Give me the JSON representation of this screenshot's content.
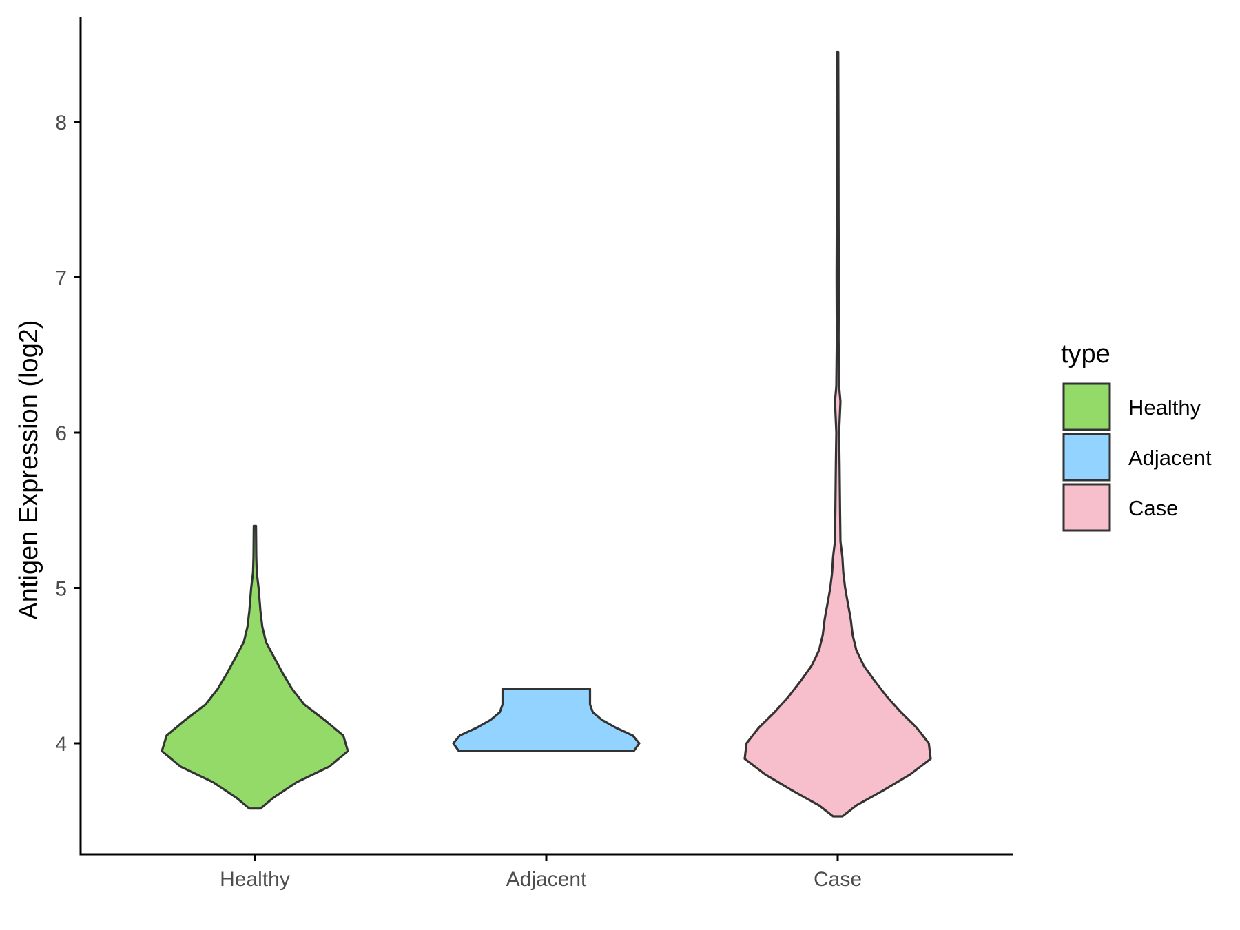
{
  "chart_data": {
    "type": "violin",
    "xlabel": "",
    "ylabel": "Antigen Expression (log2)",
    "ylim": [
      3.3,
      8.7
    ],
    "yticks": [
      4,
      5,
      6,
      7,
      8
    ],
    "categories": [
      "Healthy",
      "Adjacent",
      "Case"
    ],
    "grid": false,
    "legend": {
      "title": "type",
      "placement": "right",
      "entries": [
        {
          "label": "Healthy",
          "color": "#93DA69"
        },
        {
          "label": "Adjacent",
          "color": "#93D3FF"
        },
        {
          "label": "Case",
          "color": "#F7BFCB"
        }
      ]
    },
    "series": [
      {
        "name": "Healthy",
        "color": "#93DA69",
        "density": [
          [
            3.58,
            0.06
          ],
          [
            3.65,
            0.2
          ],
          [
            3.75,
            0.45
          ],
          [
            3.85,
            0.8
          ],
          [
            3.95,
            1.0
          ],
          [
            4.05,
            0.95
          ],
          [
            4.15,
            0.75
          ],
          [
            4.25,
            0.53
          ],
          [
            4.35,
            0.4
          ],
          [
            4.45,
            0.3
          ],
          [
            4.55,
            0.21
          ],
          [
            4.65,
            0.12
          ],
          [
            4.75,
            0.08
          ],
          [
            4.85,
            0.06
          ],
          [
            5.0,
            0.04
          ],
          [
            5.1,
            0.02
          ],
          [
            5.2,
            0.015
          ],
          [
            5.4,
            0.012
          ]
        ]
      },
      {
        "name": "Adjacent",
        "color": "#93D3FF",
        "density": [
          [
            3.95,
            0.94
          ],
          [
            4.0,
            1.0
          ],
          [
            4.05,
            0.93
          ],
          [
            4.1,
            0.75
          ],
          [
            4.15,
            0.6
          ],
          [
            4.2,
            0.5
          ],
          [
            4.25,
            0.47
          ],
          [
            4.3,
            0.47
          ],
          [
            4.35,
            0.47
          ]
        ]
      },
      {
        "name": "Case",
        "color": "#F7BFCB",
        "density": [
          [
            3.53,
            0.05
          ],
          [
            3.6,
            0.2
          ],
          [
            3.7,
            0.5
          ],
          [
            3.8,
            0.78
          ],
          [
            3.9,
            1.0
          ],
          [
            4.0,
            0.98
          ],
          [
            4.1,
            0.85
          ],
          [
            4.2,
            0.68
          ],
          [
            4.3,
            0.53
          ],
          [
            4.4,
            0.4
          ],
          [
            4.5,
            0.28
          ],
          [
            4.6,
            0.2
          ],
          [
            4.7,
            0.16
          ],
          [
            4.8,
            0.14
          ],
          [
            4.9,
            0.11
          ],
          [
            5.0,
            0.08
          ],
          [
            5.1,
            0.06
          ],
          [
            5.2,
            0.05
          ],
          [
            5.3,
            0.03
          ],
          [
            5.5,
            0.025
          ],
          [
            5.8,
            0.02
          ],
          [
            6.0,
            0.015
          ],
          [
            6.2,
            0.03
          ],
          [
            6.3,
            0.015
          ],
          [
            6.6,
            0.01
          ],
          [
            7.0,
            0.012
          ],
          [
            7.4,
            0.01
          ],
          [
            8.0,
            0.008
          ],
          [
            8.45,
            0.006
          ]
        ]
      }
    ]
  }
}
